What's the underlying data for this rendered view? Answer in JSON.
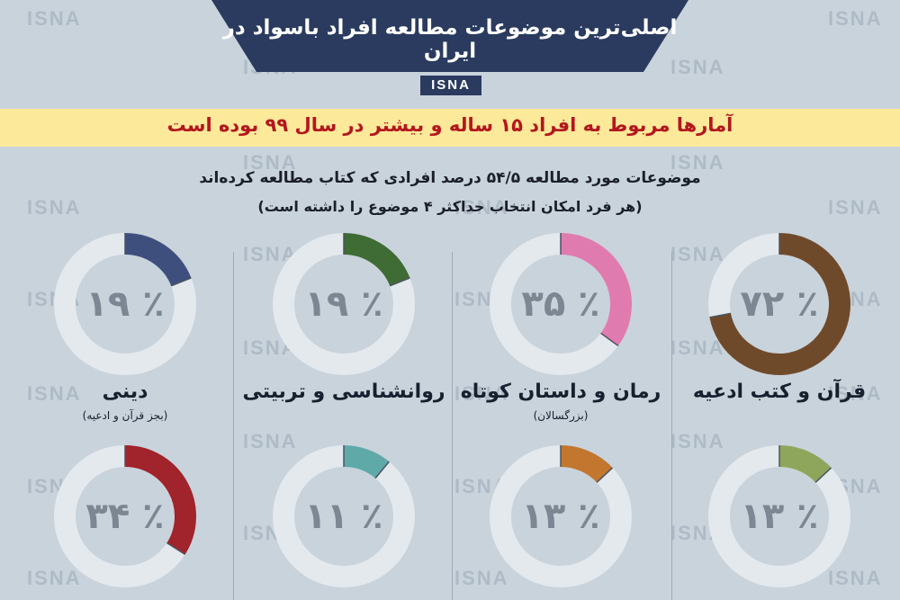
{
  "header": {
    "title": "اصلی‌ترین موضوعات مطالعه افراد باسواد در ایران",
    "brand": "ISNA"
  },
  "watermark": "ISNA",
  "subtitle_bar": "آمارها مربوط به افراد ۱۵ ساله و بیشتر در سال ۹۹ بوده است",
  "subtitle_line1": "موضوعات مورد مطالعه ۵۴/۵ درصد افرادی که کتاب مطالعه کرده‌اند",
  "subtitle_line2": "(هر فرد امکان انتخاب حداکثر ۴ موضوع را داشته است)",
  "colors": {
    "background": "#c9d3dc",
    "banner": "#2a3b5f",
    "yellow": "#fde99a",
    "red_text": "#b3171e",
    "track": "#e4e9ee"
  },
  "chart_data": {
    "type": "donut",
    "unit": "%",
    "items": [
      {
        "label": "قرآن و کتب ادعیه",
        "note": "",
        "value": 72,
        "value_text": "٪ ۷۲",
        "color": "#6f4a2a"
      },
      {
        "label": "رمان و داستان کوتاه",
        "note": "(بزرگسالان)",
        "value": 35,
        "value_text": "٪ ۳۵",
        "color": "#e07bb0"
      },
      {
        "label": "روانشناسی و تربیتی",
        "note": "",
        "value": 19,
        "value_text": "٪ ۱۹",
        "color": "#3f6b34"
      },
      {
        "label": "دینی",
        "note": "(بجز قرآن و ادعیه)",
        "value": 19,
        "value_text": "٪ ۱۹",
        "color": "#3f4f7d"
      },
      {
        "label": "",
        "note": "",
        "value": 13,
        "value_text": "٪ ۱۳",
        "color": "#8ea65b"
      },
      {
        "label": "",
        "note": "",
        "value": 13,
        "value_text": "٪ ۱۳",
        "color": "#c2762e"
      },
      {
        "label": "",
        "note": "",
        "value": 11,
        "value_text": "٪ ۱۱",
        "color": "#5fa9a9"
      },
      {
        "label": "",
        "note": "",
        "value": 34,
        "value_text": "٪ ۳۴",
        "color": "#a1232b"
      }
    ]
  }
}
